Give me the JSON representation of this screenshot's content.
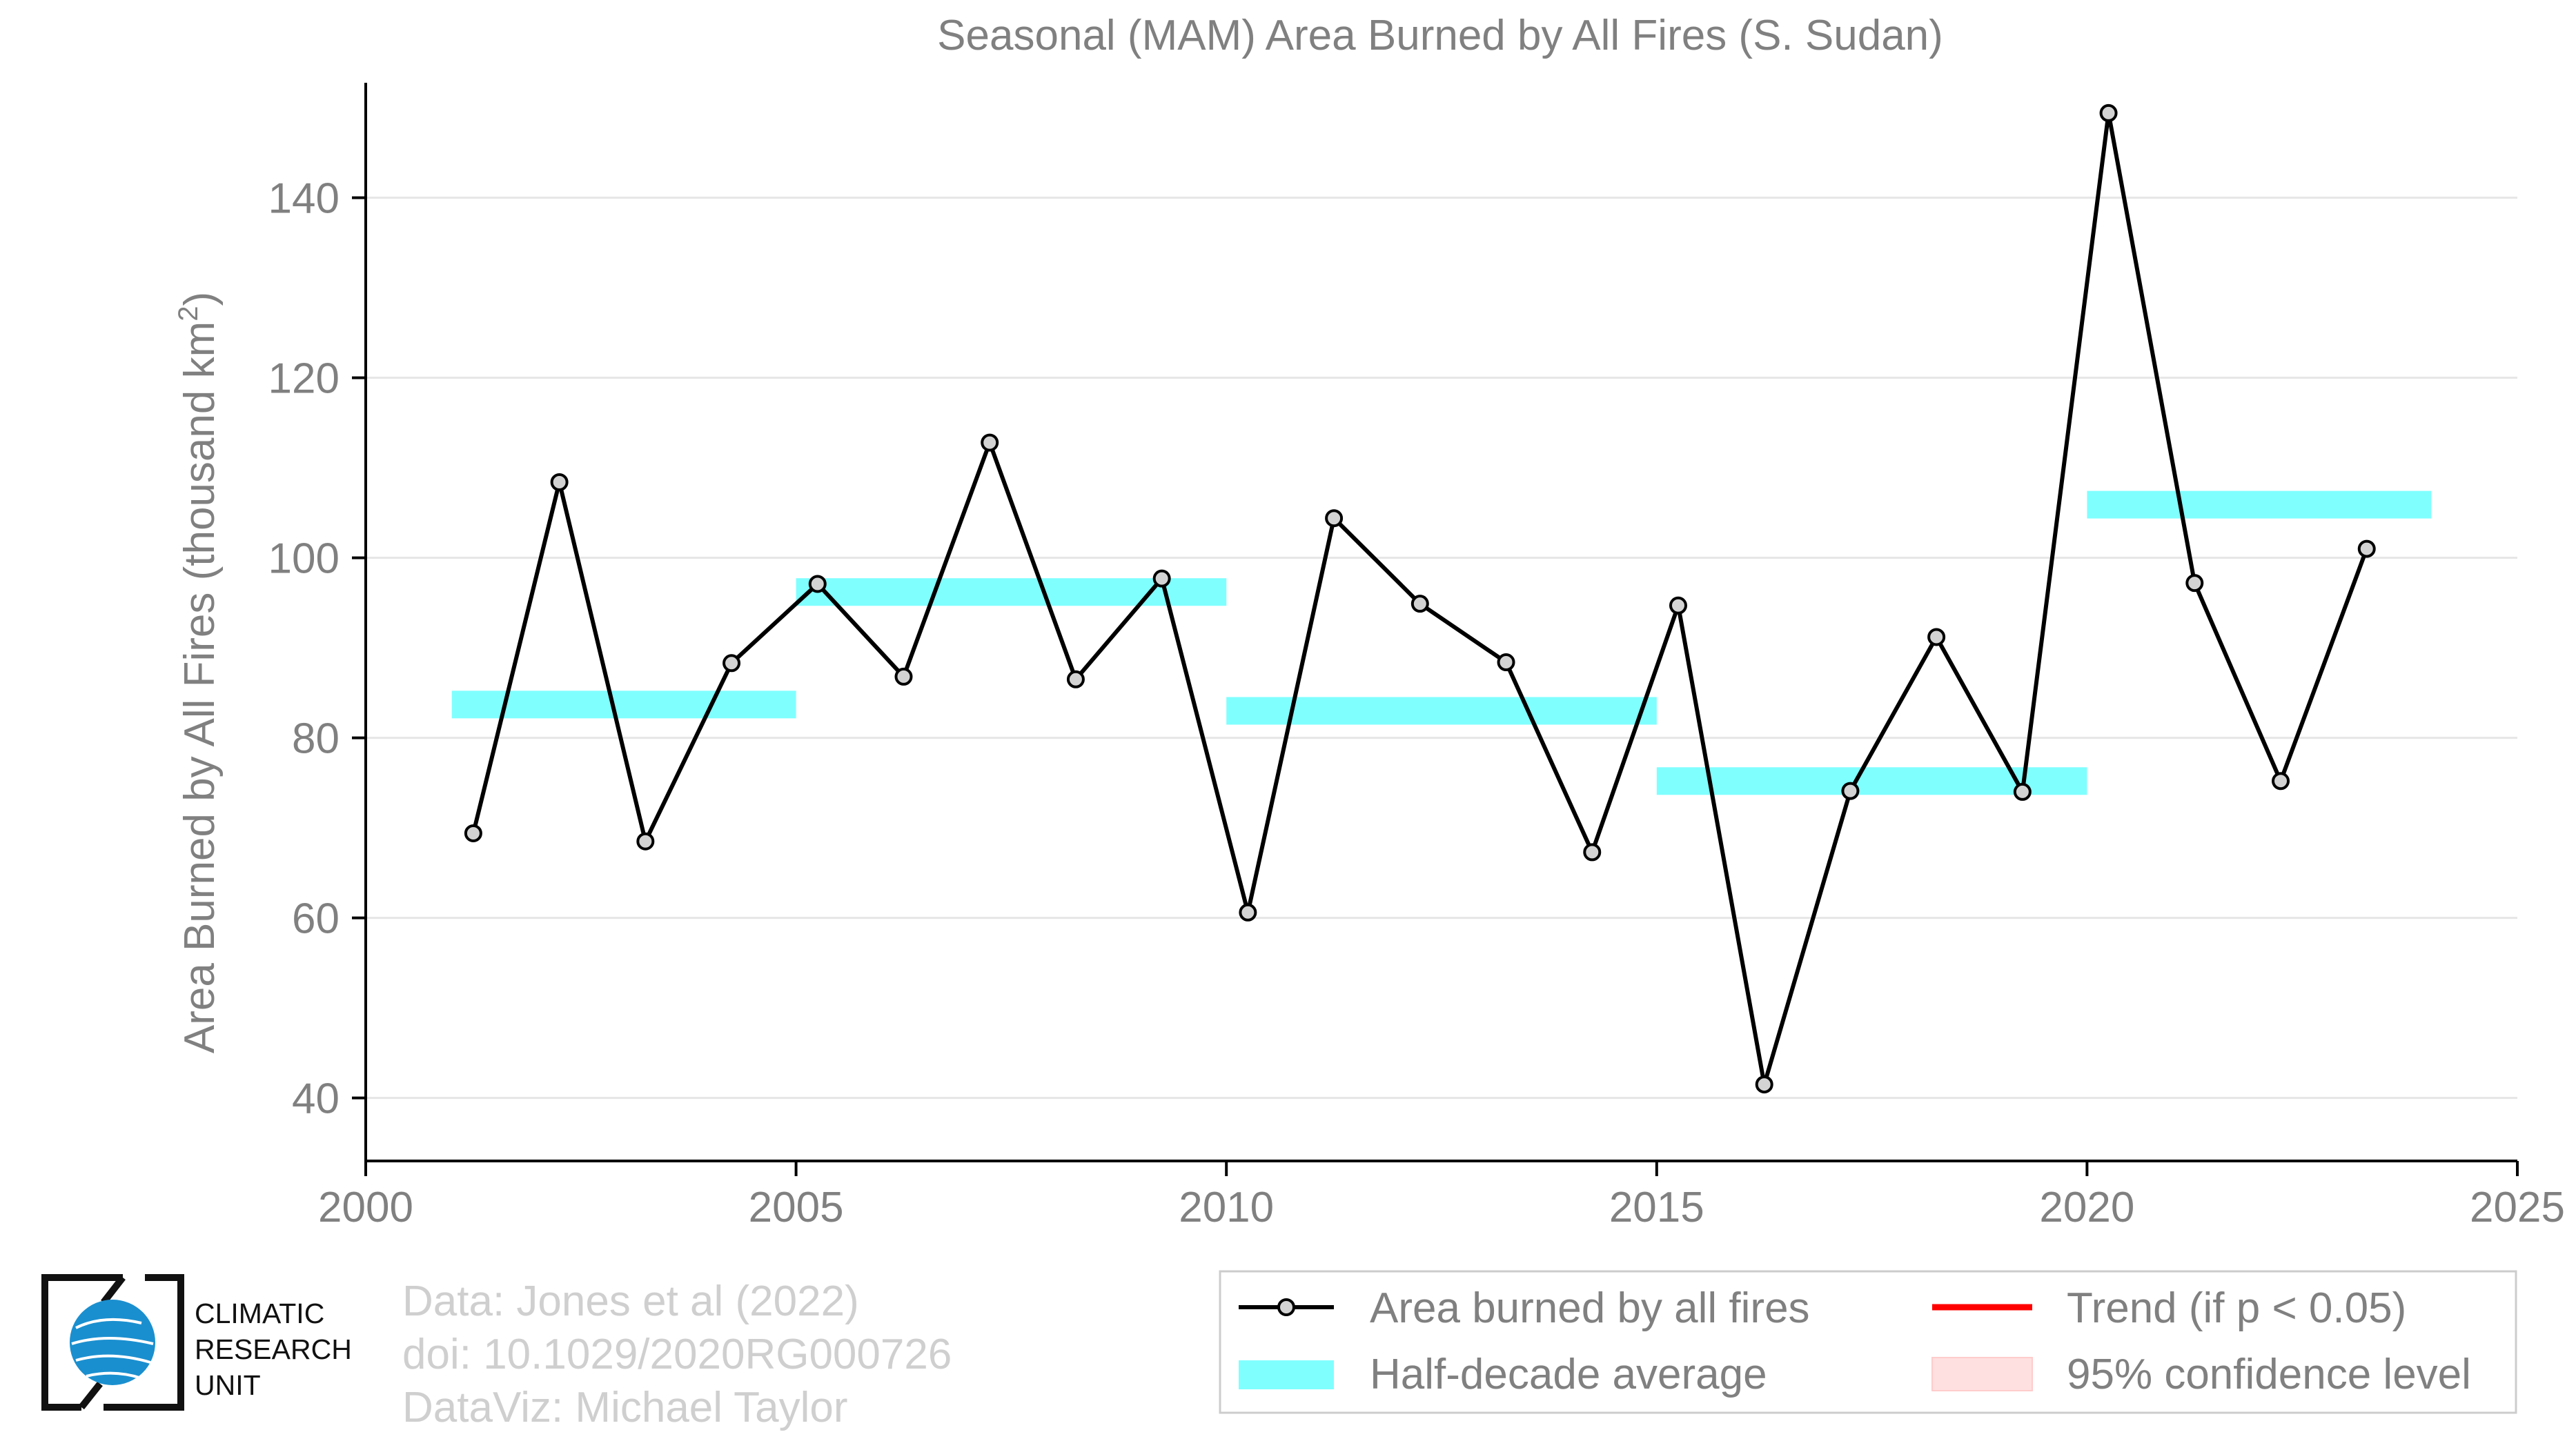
{
  "chart_data": {
    "type": "line",
    "title": "Seasonal (MAM) Area Burned by All Fires (S. Sudan)",
    "ylabel": "Area Burned by All Fires (thousand km",
    "ylabel_sup": "2",
    "ylabel_end": ")",
    "xlim": [
      2000,
      2025
    ],
    "ylim": [
      33,
      152
    ],
    "xticks": [
      2000,
      2005,
      2010,
      2015,
      2020,
      2025
    ],
    "yticks": [
      40,
      60,
      80,
      100,
      120,
      140
    ],
    "grid": "horizontal",
    "series": [
      {
        "name": "Area burned by all fires",
        "color": "#000000",
        "marker_fill": "#d3d3d3",
        "x": [
          2001.25,
          2002.25,
          2003.25,
          2004.25,
          2005.25,
          2006.25,
          2007.25,
          2008.25,
          2009.25,
          2010.25,
          2011.25,
          2012.25,
          2013.25,
          2014.25,
          2015.25,
          2016.25,
          2017.25,
          2018.25,
          2019.25,
          2020.25,
          2021.25,
          2022.25,
          2023.25
        ],
        "y": [
          69.4,
          108.4,
          68.5,
          88.3,
          97.1,
          86.8,
          112.8,
          86.5,
          97.7,
          60.6,
          104.4,
          94.9,
          88.4,
          67.3,
          94.7,
          41.5,
          74.1,
          91.2,
          74.0,
          149.4,
          97.2,
          75.2,
          101.0
        ]
      }
    ],
    "half_decade_average": {
      "name": "Half-decade average",
      "color": "#80ffff",
      "segments": [
        {
          "x0": 2001,
          "x1": 2005,
          "y": 83.7
        },
        {
          "x0": 2005,
          "x1": 2010,
          "y": 96.2
        },
        {
          "x0": 2010,
          "x1": 2015,
          "y": 83.0
        },
        {
          "x0": 2015,
          "x1": 2020,
          "y": 75.2
        },
        {
          "x0": 2020,
          "x1": 2024,
          "y": 105.9
        }
      ]
    },
    "legend": {
      "placement": "bottom-right",
      "entries": [
        {
          "label": "Area burned by all fires",
          "type": "line-marker",
          "color": "#000000"
        },
        {
          "label": "Trend (if p < 0.05)",
          "type": "line",
          "color": "#ff0000"
        },
        {
          "label": "Half-decade average",
          "type": "band",
          "color": "#80ffff"
        },
        {
          "label": "95% confidence level",
          "type": "band",
          "color": "#ffe0e0"
        }
      ]
    }
  },
  "credits": {
    "line1": "Data: Jones et al (2022)",
    "line2": "doi: 10.1029/2020RG000726",
    "line3": "DataViz: Michael Taylor"
  },
  "logo": {
    "line1": "CLIMATIC",
    "line2": "RESEARCH",
    "line3": "UNIT",
    "color": "#1a8fcf"
  },
  "colors": {
    "axis_text": "#808080",
    "grid": "#e6e6e6",
    "axis_line": "#000000"
  }
}
